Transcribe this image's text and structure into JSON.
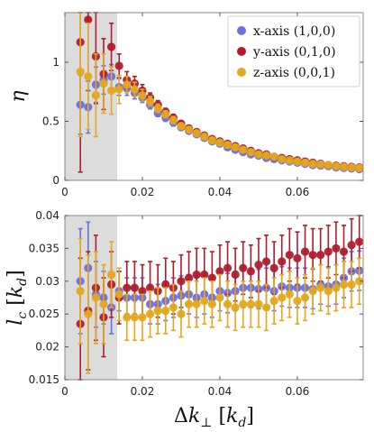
{
  "chart_data": [
    {
      "type": "scatter",
      "ylabel": "η",
      "xlim": [
        0,
        0.077
      ],
      "ylim": [
        0,
        1.42
      ],
      "xticks": [
        0,
        0.02,
        0.04,
        0.06
      ],
      "xtick_labels": [
        "0",
        "0.02",
        "0.04",
        "0.06"
      ],
      "yticks": [
        0,
        0.5,
        1
      ],
      "ytick_labels": [
        "0",
        "0.5",
        "1"
      ],
      "shaded_x_range": [
        0,
        0.0135
      ],
      "grid": false,
      "legend_position": "top-right",
      "series": [
        {
          "name": "x-axis (1,0,0)",
          "color": "#6b6fe0",
          "x": [
            0.004,
            0.006,
            0.008,
            0.01,
            0.012,
            0.014,
            0.016,
            0.018,
            0.02,
            0.022,
            0.024,
            0.026,
            0.028,
            0.03,
            0.032,
            0.034,
            0.036,
            0.038,
            0.04,
            0.042,
            0.044,
            0.046,
            0.048,
            0.05,
            0.052,
            0.054,
            0.056,
            0.058,
            0.06,
            0.062,
            0.064,
            0.066,
            0.068,
            0.07,
            0.072,
            0.074,
            0.076
          ],
          "y": [
            0.64,
            0.62,
            0.81,
            0.85,
            0.88,
            0.79,
            0.78,
            0.74,
            0.7,
            0.64,
            0.57,
            0.53,
            0.49,
            0.45,
            0.42,
            0.39,
            0.36,
            0.33,
            0.31,
            0.28,
            0.26,
            0.24,
            0.22,
            0.21,
            0.19,
            0.18,
            0.17,
            0.16,
            0.15,
            0.14,
            0.13,
            0.125,
            0.12,
            0.11,
            0.105,
            0.1,
            0.095
          ],
          "err": [
            0.25,
            0.22,
            0.15,
            0.12,
            0.1,
            0.07,
            0.06,
            0.05,
            0.04,
            0.035,
            0.03,
            0.03,
            0.03,
            0.025,
            0.025,
            0.02,
            0.02,
            0.02,
            0.02,
            0.02,
            0.02,
            0.02,
            0.02,
            0.015,
            0.015,
            0.015,
            0.015,
            0.015,
            0.015,
            0.015,
            0.015,
            0.015,
            0.015,
            0.015,
            0.015,
            0.015,
            0.015
          ]
        },
        {
          "name": "y-axis (0,1,0)",
          "color": "#b01c2e",
          "x": [
            0.004,
            0.006,
            0.008,
            0.01,
            0.012,
            0.014,
            0.016,
            0.018,
            0.02,
            0.022,
            0.024,
            0.026,
            0.028,
            0.03,
            0.032,
            0.034,
            0.036,
            0.038,
            0.04,
            0.042,
            0.044,
            0.046,
            0.048,
            0.05,
            0.052,
            0.054,
            0.056,
            0.058,
            0.06,
            0.062,
            0.064,
            0.066,
            0.068,
            0.07,
            0.072,
            0.074,
            0.076
          ],
          "y": [
            1.17,
            1.36,
            1.05,
            0.9,
            1.13,
            0.97,
            0.85,
            0.82,
            0.76,
            0.7,
            0.64,
            0.58,
            0.53,
            0.48,
            0.44,
            0.41,
            0.38,
            0.35,
            0.33,
            0.31,
            0.29,
            0.27,
            0.25,
            0.23,
            0.22,
            0.2,
            0.19,
            0.18,
            0.17,
            0.16,
            0.15,
            0.14,
            0.13,
            0.125,
            0.12,
            0.115,
            0.11
          ],
          "err": [
            1.1,
            0.6,
            0.4,
            0.3,
            0.2,
            0.1,
            0.07,
            0.06,
            0.05,
            0.04,
            0.035,
            0.03,
            0.03,
            0.025,
            0.025,
            0.02,
            0.02,
            0.02,
            0.02,
            0.02,
            0.02,
            0.02,
            0.02,
            0.015,
            0.015,
            0.015,
            0.015,
            0.015,
            0.015,
            0.015,
            0.015,
            0.015,
            0.015,
            0.015,
            0.015,
            0.015,
            0.015
          ]
        },
        {
          "name": "z-axis (0,0,1)",
          "color": "#e3a81c",
          "x": [
            0.004,
            0.006,
            0.008,
            0.01,
            0.012,
            0.014,
            0.016,
            0.018,
            0.02,
            0.022,
            0.024,
            0.026,
            0.028,
            0.03,
            0.032,
            0.034,
            0.036,
            0.038,
            0.04,
            0.042,
            0.044,
            0.046,
            0.048,
            0.05,
            0.052,
            0.054,
            0.056,
            0.058,
            0.06,
            0.062,
            0.064,
            0.066,
            0.068,
            0.07,
            0.072,
            0.074,
            0.076
          ],
          "y": [
            0.92,
            0.88,
            0.72,
            0.82,
            0.76,
            0.77,
            0.81,
            0.77,
            0.72,
            0.67,
            0.61,
            0.56,
            0.51,
            0.46,
            0.43,
            0.4,
            0.37,
            0.34,
            0.32,
            0.3,
            0.28,
            0.26,
            0.24,
            0.22,
            0.21,
            0.2,
            0.18,
            0.17,
            0.16,
            0.15,
            0.14,
            0.135,
            0.13,
            0.12,
            0.115,
            0.11,
            0.105
          ],
          "err": [
            0.55,
            0.45,
            0.35,
            0.25,
            0.2,
            0.12,
            0.07,
            0.06,
            0.05,
            0.04,
            0.035,
            0.03,
            0.03,
            0.025,
            0.025,
            0.02,
            0.02,
            0.02,
            0.02,
            0.02,
            0.02,
            0.02,
            0.02,
            0.015,
            0.015,
            0.015,
            0.015,
            0.015,
            0.015,
            0.015,
            0.015,
            0.015,
            0.015,
            0.015,
            0.015,
            0.015,
            0.015
          ]
        }
      ]
    },
    {
      "type": "scatter",
      "xlabel": "Δk⊥ [kd]",
      "ylabel": "lc [kd]",
      "xlim": [
        0,
        0.077
      ],
      "ylim": [
        0.015,
        0.04
      ],
      "xticks": [
        0,
        0.02,
        0.04,
        0.06
      ],
      "xtick_labels": [
        "0",
        "0.02",
        "0.04",
        "0.06"
      ],
      "yticks": [
        0.015,
        0.02,
        0.025,
        0.03,
        0.035,
        0.04
      ],
      "ytick_labels": [
        "0.015",
        "0.02",
        "0.025",
        "0.03",
        "0.035",
        "0.04"
      ],
      "shaded_x_range": [
        0,
        0.0135
      ],
      "grid": false,
      "series": [
        {
          "name": "x-axis (1,0,0)",
          "color": "#6b6fe0",
          "x": [
            0.004,
            0.006,
            0.008,
            0.01,
            0.012,
            0.014,
            0.016,
            0.018,
            0.02,
            0.022,
            0.024,
            0.026,
            0.028,
            0.03,
            0.032,
            0.034,
            0.036,
            0.038,
            0.04,
            0.042,
            0.044,
            0.046,
            0.048,
            0.05,
            0.052,
            0.054,
            0.056,
            0.058,
            0.06,
            0.062,
            0.064,
            0.066,
            0.068,
            0.07,
            0.072,
            0.074,
            0.076
          ],
          "y": [
            0.03,
            0.032,
            0.028,
            0.0275,
            0.026,
            0.0285,
            0.0275,
            0.0275,
            0.0275,
            0.0265,
            0.0265,
            0.027,
            0.0275,
            0.0278,
            0.028,
            0.0275,
            0.028,
            0.0275,
            0.0285,
            0.0282,
            0.0285,
            0.029,
            0.029,
            0.0288,
            0.029,
            0.0285,
            0.0292,
            0.029,
            0.029,
            0.029,
            0.0288,
            0.0295,
            0.0292,
            0.0295,
            0.0305,
            0.0315,
            0.0316
          ],
          "err": [
            0.008,
            0.007,
            0.005,
            0.004,
            0.004,
            0.003,
            0.003,
            0.003,
            0.003,
            0.003,
            0.003,
            0.003,
            0.003,
            0.003,
            0.003,
            0.003,
            0.003,
            0.003,
            0.003,
            0.003,
            0.003,
            0.003,
            0.003,
            0.003,
            0.003,
            0.003,
            0.003,
            0.003,
            0.003,
            0.003,
            0.003,
            0.003,
            0.003,
            0.003,
            0.003,
            0.003,
            0.003
          ]
        },
        {
          "name": "y-axis (0,1,0)",
          "color": "#b01c2e",
          "x": [
            0.004,
            0.006,
            0.008,
            0.01,
            0.012,
            0.014,
            0.016,
            0.018,
            0.02,
            0.022,
            0.024,
            0.026,
            0.028,
            0.03,
            0.032,
            0.034,
            0.036,
            0.038,
            0.04,
            0.042,
            0.044,
            0.046,
            0.048,
            0.05,
            0.052,
            0.054,
            0.056,
            0.058,
            0.06,
            0.062,
            0.064,
            0.066,
            0.068,
            0.07,
            0.072,
            0.074,
            0.076
          ],
          "y": [
            0.0235,
            0.0255,
            0.029,
            0.0245,
            0.0295,
            0.0275,
            0.029,
            0.029,
            0.0285,
            0.029,
            0.0285,
            0.0295,
            0.029,
            0.03,
            0.0305,
            0.031,
            0.031,
            0.0305,
            0.0315,
            0.032,
            0.031,
            0.032,
            0.0315,
            0.0325,
            0.033,
            0.032,
            0.033,
            0.034,
            0.0335,
            0.0345,
            0.034,
            0.034,
            0.0345,
            0.035,
            0.0345,
            0.0355,
            0.036
          ],
          "err": [
            0.01,
            0.009,
            0.008,
            0.006,
            0.005,
            0.004,
            0.004,
            0.004,
            0.004,
            0.004,
            0.004,
            0.004,
            0.004,
            0.004,
            0.004,
            0.004,
            0.004,
            0.004,
            0.004,
            0.004,
            0.004,
            0.004,
            0.004,
            0.004,
            0.004,
            0.004,
            0.004,
            0.004,
            0.004,
            0.004,
            0.004,
            0.004,
            0.004,
            0.004,
            0.004,
            0.004,
            0.004
          ]
        },
        {
          "name": "z-axis (0,0,1)",
          "color": "#e3a81c",
          "x": [
            0.004,
            0.006,
            0.008,
            0.01,
            0.012,
            0.014,
            0.016,
            0.018,
            0.02,
            0.022,
            0.024,
            0.026,
            0.028,
            0.03,
            0.032,
            0.034,
            0.036,
            0.038,
            0.04,
            0.042,
            0.044,
            0.046,
            0.048,
            0.05,
            0.052,
            0.054,
            0.056,
            0.058,
            0.06,
            0.062,
            0.064,
            0.066,
            0.068,
            0.07,
            0.072,
            0.074,
            0.076
          ],
          "y": [
            0.0285,
            0.025,
            0.0275,
            0.0265,
            0.031,
            0.028,
            0.0245,
            0.0245,
            0.0245,
            0.025,
            0.0255,
            0.0255,
            0.026,
            0.025,
            0.0265,
            0.0265,
            0.027,
            0.0265,
            0.0275,
            0.0265,
            0.026,
            0.0265,
            0.0265,
            0.0265,
            0.026,
            0.027,
            0.0275,
            0.028,
            0.027,
            0.0275,
            0.0285,
            0.029,
            0.0285,
            0.029,
            0.0295,
            0.0295,
            0.03
          ],
          "err": [
            0.008,
            0.009,
            0.007,
            0.006,
            0.005,
            0.004,
            0.0035,
            0.0035,
            0.0035,
            0.0035,
            0.0035,
            0.0035,
            0.0035,
            0.0035,
            0.0035,
            0.0035,
            0.0035,
            0.0035,
            0.0035,
            0.0035,
            0.0035,
            0.0035,
            0.0035,
            0.0035,
            0.0035,
            0.0035,
            0.0035,
            0.0035,
            0.0035,
            0.0035,
            0.0035,
            0.0035,
            0.0035,
            0.0035,
            0.0035,
            0.0035,
            0.0035
          ]
        }
      ]
    }
  ],
  "legend": [
    {
      "label": "x-axis (1,0,0)",
      "color": "#6b6fe0"
    },
    {
      "label": "y-axis (0,1,0)",
      "color": "#b01c2e"
    },
    {
      "label": "z-axis (0,0,1)",
      "color": "#e3a81c"
    }
  ],
  "shade_color": "#dcdcdc"
}
